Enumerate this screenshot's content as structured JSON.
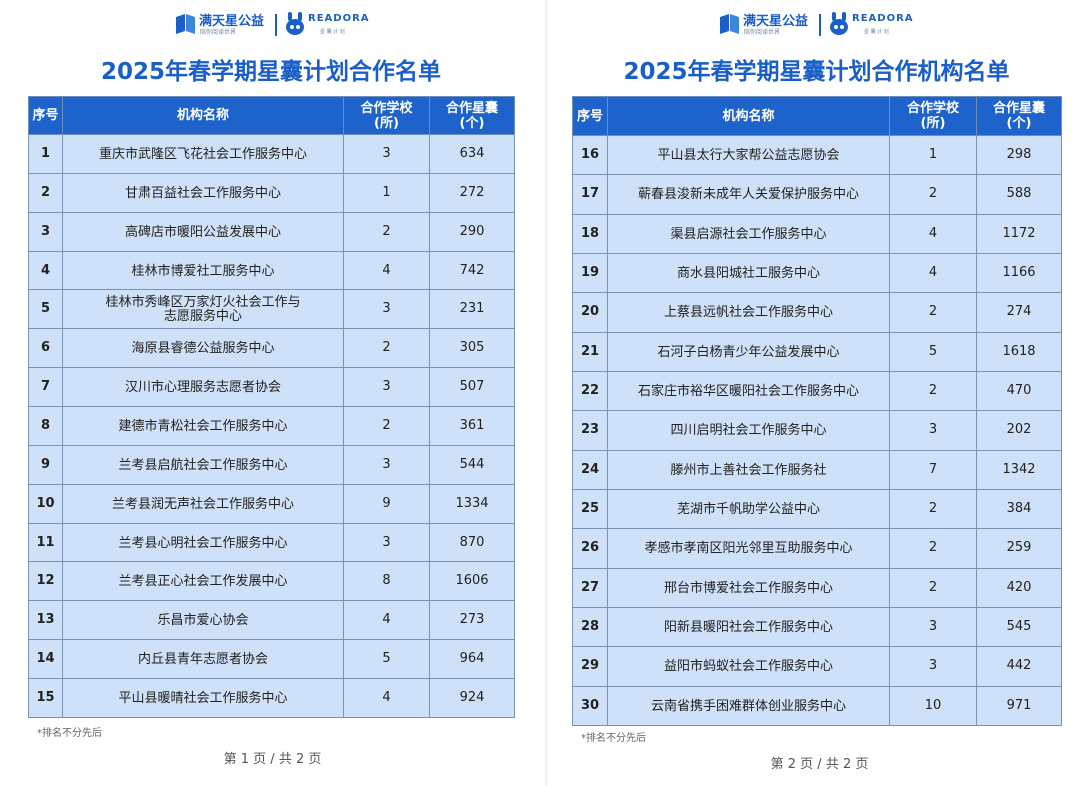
{
  "pages": [
    {
      "logo": {
        "brand": "满天星公益",
        "slogan": "陪你阅读世界",
        "partner": "READORA",
        "partner_sub": "星 囊 计 划"
      },
      "title": "2025年春学期星囊计划合作名单",
      "table": {
        "headers": [
          "序号",
          "机构名称",
          "合作学校\n(所)",
          "合作星囊\n(个)"
        ],
        "rows": [
          [
            1,
            "重庆市武隆区飞花社会工作服务中心",
            3,
            634
          ],
          [
            2,
            "甘肃百益社会工作服务中心",
            1,
            272
          ],
          [
            3,
            "高碑店市暖阳公益发展中心",
            2,
            290
          ],
          [
            4,
            "桂林市博爱社工服务中心",
            4,
            742
          ],
          [
            5,
            "桂林市秀峰区万家灯火社会工作与\n志愿服务中心",
            3,
            231
          ],
          [
            6,
            "海原县睿德公益服务中心",
            2,
            305
          ],
          [
            7,
            "汉川市心理服务志愿者协会",
            3,
            507
          ],
          [
            8,
            "建德市青松社会工作服务中心",
            2,
            361
          ],
          [
            9,
            "兰考县启航社会工作服务中心",
            3,
            544
          ],
          [
            10,
            "兰考县润无声社会工作服务中心",
            9,
            1334
          ],
          [
            11,
            "兰考县心明社会工作服务中心",
            3,
            870
          ],
          [
            12,
            "兰考县正心社会工作发展中心",
            8,
            1606
          ],
          [
            13,
            "乐昌市爱心协会",
            4,
            273
          ],
          [
            14,
            "内丘县青年志愿者协会",
            5,
            964
          ],
          [
            15,
            "平山县暖晴社会工作服务中心",
            4,
            924
          ]
        ]
      },
      "note": "*排名不分先后",
      "footer": "第 1 页 / 共 2 页"
    },
    {
      "logo": {
        "brand": "满天星公益",
        "slogan": "陪你阅读世界",
        "partner": "READORA",
        "partner_sub": "星 囊 计 划"
      },
      "title": "2025年春学期星囊计划合作机构名单",
      "table": {
        "headers": [
          "序号",
          "机构名称",
          "合作学校\n(所)",
          "合作星囊\n(个)"
        ],
        "rows": [
          [
            16,
            "平山县太行大家帮公益志愿协会",
            1,
            298
          ],
          [
            17,
            "蕲春县浚新未成年人关爱保护服务中心",
            2,
            588
          ],
          [
            18,
            "渠县启源社会工作服务中心",
            4,
            1172
          ],
          [
            19,
            "商水县阳城社工服务中心",
            4,
            1166
          ],
          [
            20,
            "上蔡县远帆社会工作服务中心",
            2,
            274
          ],
          [
            21,
            "石河子白杨青少年公益发展中心",
            5,
            1618
          ],
          [
            22,
            "石家庄市裕华区暖阳社会工作服务中心",
            2,
            470
          ],
          [
            23,
            "四川启明社会工作服务中心",
            3,
            202
          ],
          [
            24,
            "滕州市上善社会工作服务社",
            7,
            1342
          ],
          [
            25,
            "芜湖市千帆助学公益中心",
            2,
            384
          ],
          [
            26,
            "孝感市孝南区阳光邻里互助服务中心",
            2,
            259
          ],
          [
            27,
            "邢台市博爱社会工作服务中心",
            2,
            420
          ],
          [
            28,
            "阳新县暖阳社会工作服务中心",
            3,
            545
          ],
          [
            29,
            "益阳市蚂蚁社会工作服务中心",
            3,
            442
          ],
          [
            30,
            "云南省携手困难群体创业服务中心",
            10,
            971
          ]
        ]
      },
      "note": "*排名不分先后",
      "footer": "第 2 页 / 共 2 页"
    }
  ]
}
